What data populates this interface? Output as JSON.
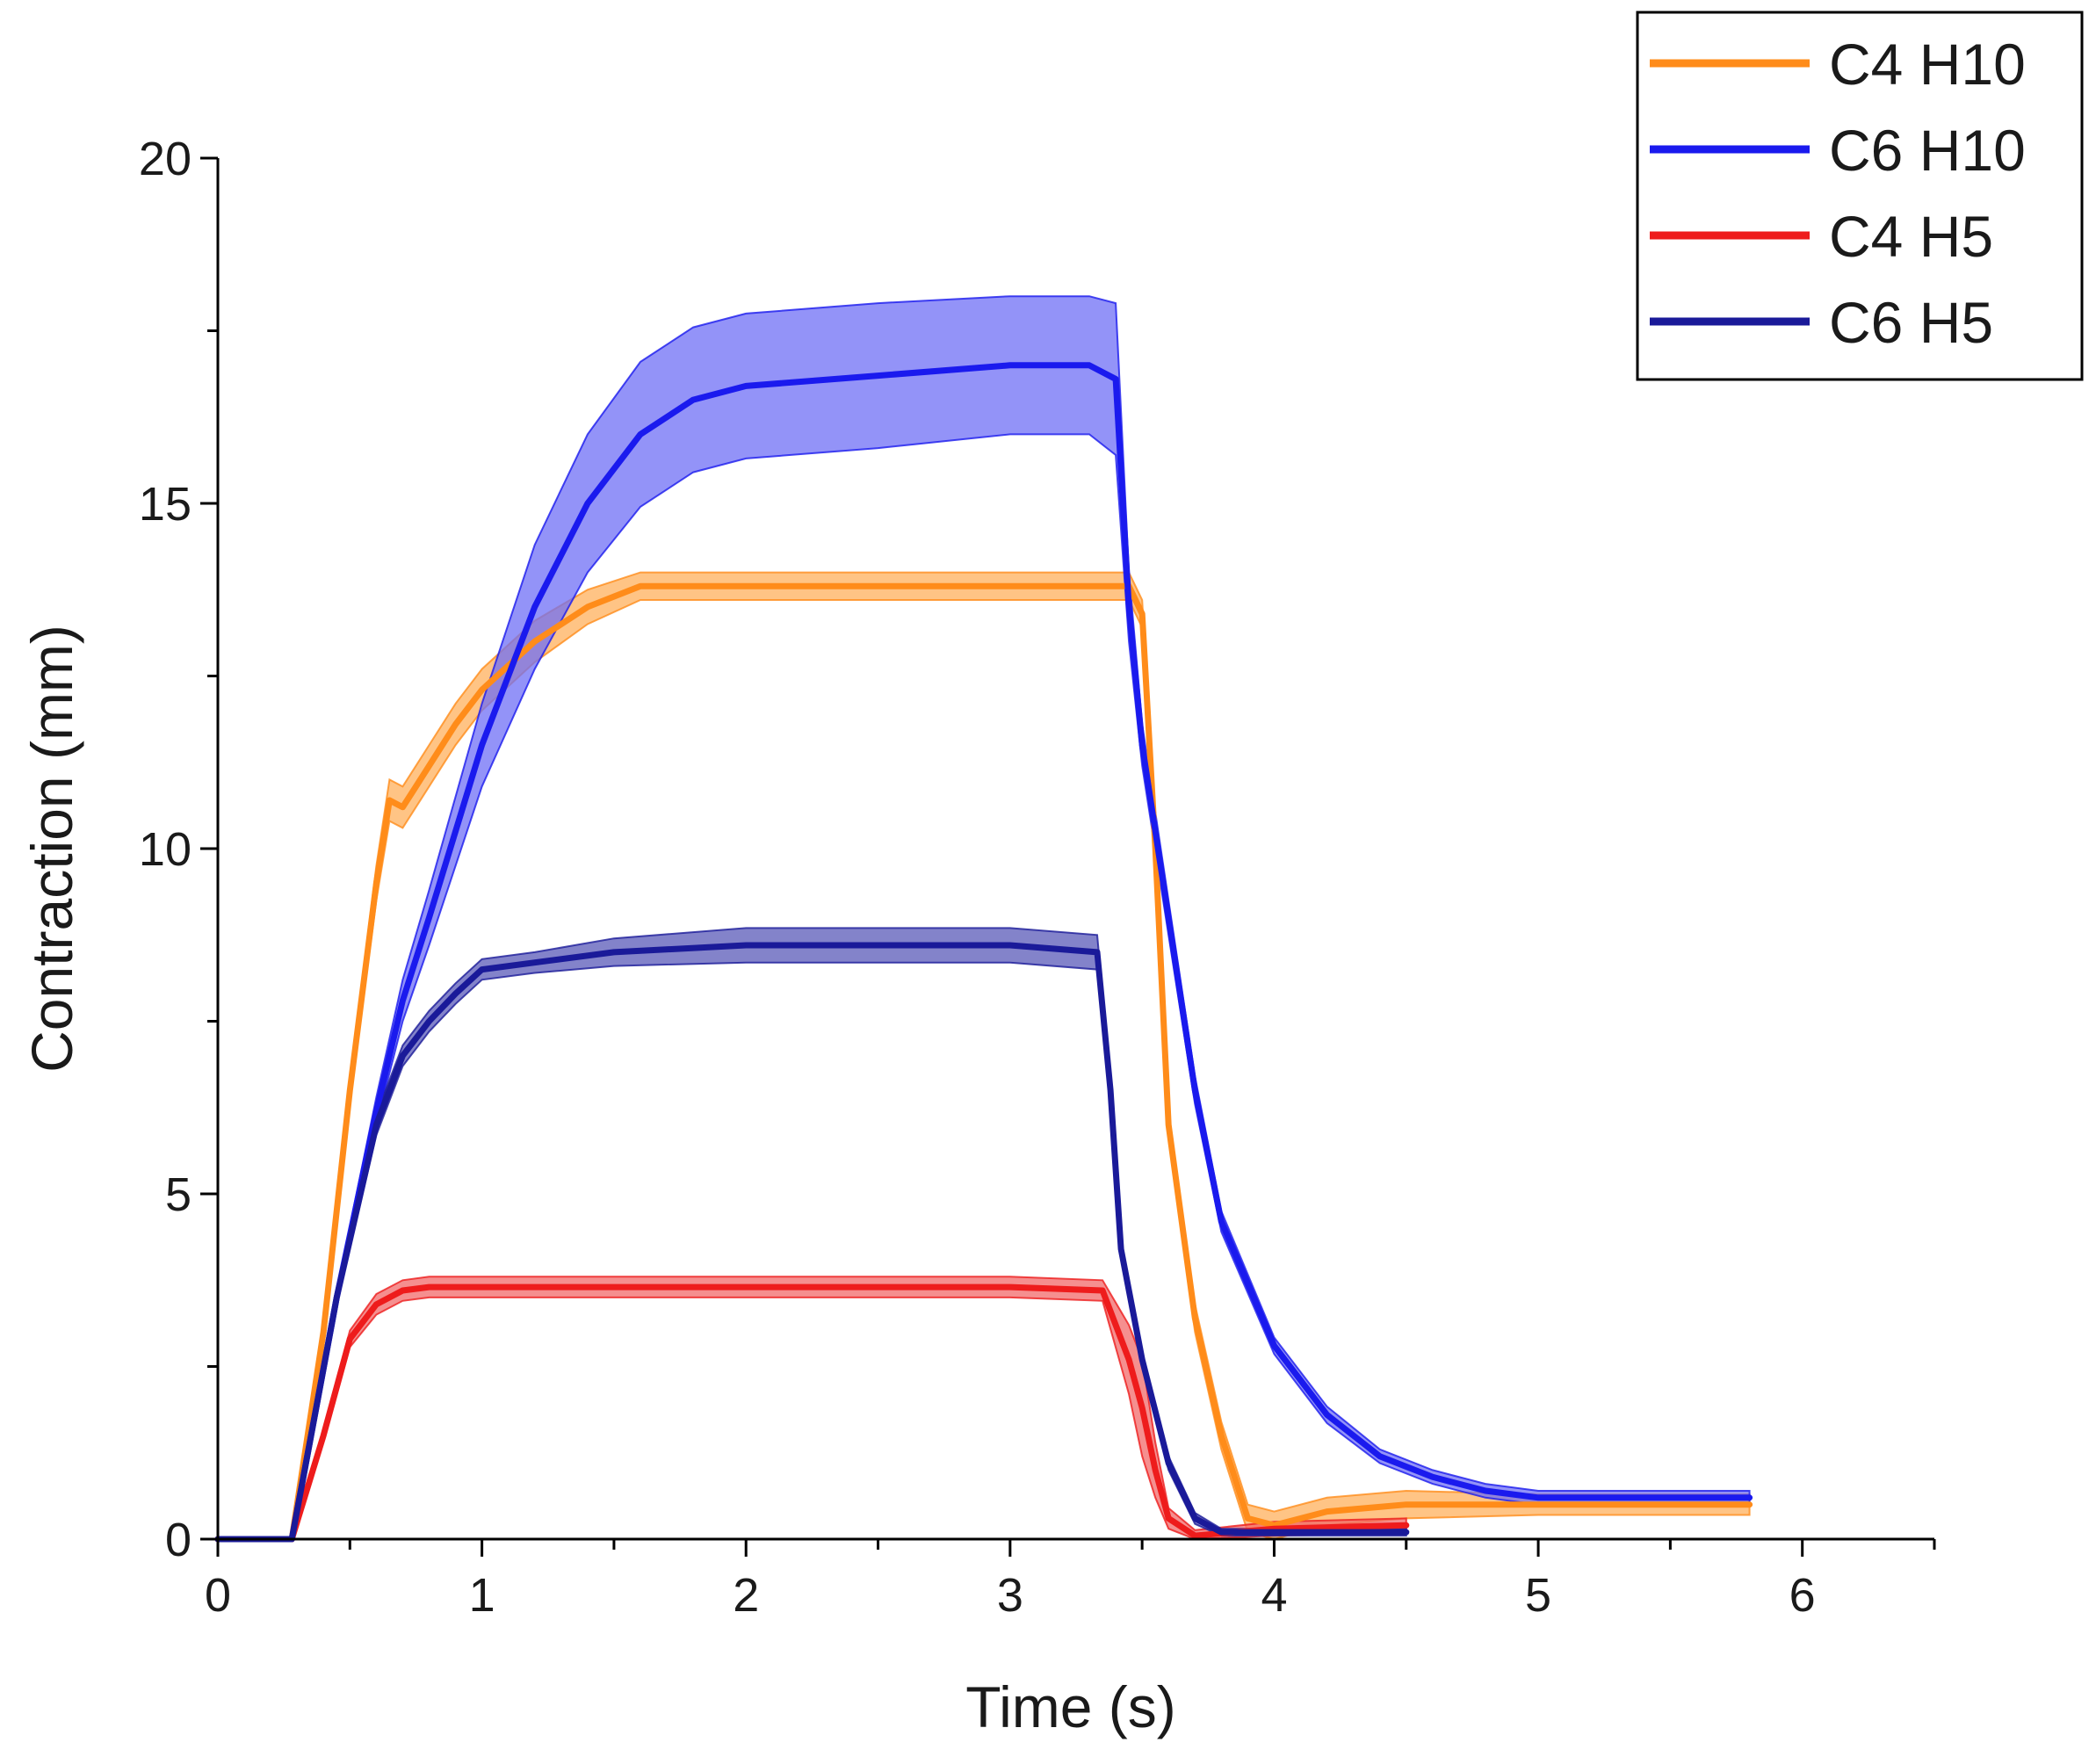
{
  "chart_data": {
    "type": "line",
    "title": "",
    "xlabel": "Time (s)",
    "ylabel": "Contraction (mm)",
    "xlim": [
      0,
      6.5
    ],
    "ylim": [
      0,
      20
    ],
    "x_ticks": [
      0,
      1,
      2,
      3,
      4,
      5,
      6
    ],
    "y_ticks": [
      0,
      5,
      10,
      15,
      20
    ],
    "x_tick_labels": [
      "0",
      "1",
      "2",
      "3",
      "4",
      "5",
      "6"
    ],
    "y_tick_labels": [
      "0",
      "5",
      "10",
      "15",
      "20"
    ],
    "legend_position": "top-right",
    "legend_title": "",
    "series": [
      {
        "name": "C4 H10",
        "color": "#ff8c1a",
        "band_color": "#ffb05c",
        "x": [
          0,
          0.28,
          0.4,
          0.5,
          0.6,
          0.65,
          0.7,
          0.75,
          0.8,
          0.9,
          1.0,
          1.2,
          1.4,
          1.6,
          1.8,
          2.0,
          2.5,
          3.0,
          3.45,
          3.5,
          3.55,
          3.6,
          3.7,
          3.8,
          3.9,
          4.0,
          4.2,
          4.5,
          5.0,
          5.8
        ],
        "y": [
          0,
          0,
          3.0,
          6.5,
          9.5,
          10.7,
          10.6,
          10.9,
          11.2,
          11.8,
          12.3,
          13.0,
          13.5,
          13.8,
          13.8,
          13.8,
          13.8,
          13.8,
          13.8,
          13.4,
          10.0,
          6.0,
          3.2,
          1.5,
          0.3,
          0.2,
          0.4,
          0.5,
          0.5,
          0.5
        ],
        "error": [
          0,
          0,
          0.1,
          0.15,
          0.25,
          0.3,
          0.3,
          0.3,
          0.3,
          0.3,
          0.3,
          0.3,
          0.25,
          0.2,
          0.2,
          0.2,
          0.2,
          0.2,
          0.2,
          0.2,
          0.2,
          0.2,
          0.2,
          0.2,
          0.2,
          0.2,
          0.2,
          0.2,
          0.15,
          0.15
        ]
      },
      {
        "name": "C6 H10",
        "color": "#1a1aee",
        "band_color": "#6f6ff5",
        "x": [
          0,
          0.28,
          0.45,
          0.6,
          0.7,
          0.8,
          1.0,
          1.2,
          1.4,
          1.6,
          1.8,
          2.0,
          2.5,
          3.0,
          3.3,
          3.4,
          3.45,
          3.5,
          3.6,
          3.7,
          3.8,
          4.0,
          4.2,
          4.4,
          4.6,
          4.8,
          5.0,
          5.5,
          5.8
        ],
        "y": [
          0,
          0,
          3.5,
          6.2,
          7.8,
          9.0,
          11.5,
          13.5,
          15.0,
          16.0,
          16.5,
          16.7,
          16.85,
          17.0,
          17.0,
          16.8,
          13.5,
          11.5,
          9.0,
          6.5,
          4.6,
          2.8,
          1.8,
          1.2,
          0.9,
          0.7,
          0.6,
          0.6,
          0.6
        ],
        "error": [
          0,
          0,
          0.1,
          0.2,
          0.3,
          0.4,
          0.6,
          0.9,
          1.0,
          1.05,
          1.05,
          1.05,
          1.05,
          1.0,
          1.0,
          1.1,
          0.5,
          0.3,
          0.25,
          0.2,
          0.15,
          0.12,
          0.12,
          0.1,
          0.1,
          0.1,
          0.1,
          0.1,
          0.1
        ]
      },
      {
        "name": "C4 H5",
        "color": "#ee1c1c",
        "band_color": "#f26a6a",
        "x": [
          0,
          0.28,
          0.4,
          0.5,
          0.6,
          0.7,
          0.8,
          1.0,
          2.0,
          3.0,
          3.35,
          3.45,
          3.5,
          3.55,
          3.6,
          3.7,
          4.0,
          4.5
        ],
        "y": [
          0,
          0,
          1.5,
          2.9,
          3.4,
          3.6,
          3.65,
          3.65,
          3.65,
          3.65,
          3.6,
          2.6,
          1.9,
          1.0,
          0.3,
          0.05,
          0.15,
          0.2
        ],
        "error": [
          0,
          0,
          0.1,
          0.12,
          0.15,
          0.15,
          0.15,
          0.15,
          0.15,
          0.15,
          0.15,
          0.5,
          0.7,
          0.4,
          0.15,
          0.08,
          0.1,
          0.1
        ]
      },
      {
        "name": "C6 H5",
        "color": "#1a1a99",
        "band_color": "#5a5ab8",
        "x": [
          0,
          0.28,
          0.45,
          0.6,
          0.7,
          0.8,
          0.9,
          1.0,
          1.2,
          1.5,
          2.0,
          3.0,
          3.33,
          3.38,
          3.42,
          3.5,
          3.6,
          3.7,
          3.8,
          4.0,
          4.5
        ],
        "y": [
          0,
          0,
          3.5,
          6.0,
          7.0,
          7.5,
          7.9,
          8.25,
          8.35,
          8.5,
          8.6,
          8.6,
          8.5,
          6.5,
          4.2,
          2.6,
          1.1,
          0.3,
          0.1,
          0.1,
          0.1
        ],
        "error": [
          0,
          0,
          0.1,
          0.15,
          0.15,
          0.15,
          0.15,
          0.15,
          0.15,
          0.2,
          0.25,
          0.25,
          0.25,
          0.15,
          0.1,
          0.1,
          0.1,
          0.08,
          0.05,
          0.05,
          0.05
        ]
      }
    ]
  }
}
